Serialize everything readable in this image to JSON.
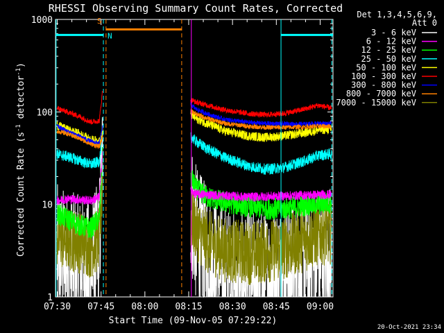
{
  "chart_data": {
    "type": "line",
    "title": "RHESSI Observing Summary Count Rates, Corrected",
    "xlabel": "Start Time (09-Nov-05 07:29:22)",
    "ylabel_main": "Corrected Count Rate (s",
    "ylabel_sup1": "-1",
    "ylabel_mid": " detector",
    "ylabel_sup2": "-1",
    "ylabel_end": ")",
    "yscale": "log",
    "ylim": [
      1,
      1000
    ],
    "xlim_minutes": [
      0,
      95
    ],
    "x_ticks": [
      {
        "t": 0.6,
        "label": "07:30"
      },
      {
        "t": 15.6,
        "label": "07:45"
      },
      {
        "t": 30.6,
        "label": "08:00"
      },
      {
        "t": 45.6,
        "label": "08:15"
      },
      {
        "t": 60.6,
        "label": "08:30"
      },
      {
        "t": 75.6,
        "label": "08:45"
      },
      {
        "t": 90.6,
        "label": "09:00"
      }
    ],
    "y_ticks": [
      {
        "v": 1,
        "label": "1"
      },
      {
        "v": 10,
        "label": "10"
      },
      {
        "v": 100,
        "label": "100"
      },
      {
        "v": 1000,
        "label": "1000"
      }
    ],
    "legend_header": [
      "Det 1,3,4,5,6,9,",
      "Att 0"
    ],
    "legend_placement": "right",
    "footer_date": "20-Oct-2021 23:34",
    "markers": {
      "S": {
        "label": "S",
        "color": "#ff8000"
      },
      "N": {
        "label": "N",
        "color": "#00ffff"
      }
    },
    "flag_bars": [
      {
        "name": "night",
        "color": "#00ffff",
        "value": 680,
        "segments": [
          [
            0,
            16.4
          ],
          [
            77.2,
            95
          ]
        ]
      },
      {
        "name": "saa",
        "color": "#ff8000",
        "value": 780,
        "segments": [
          [
            17.3,
            43.2
          ]
        ]
      }
    ],
    "vlines": [
      {
        "t": 17.3,
        "color": "#ff8000",
        "style": "dashed"
      },
      {
        "t": 43.2,
        "color": "#ff8000",
        "style": "dashed"
      },
      {
        "t": 16.4,
        "color": "#00ffff",
        "style": "dashed"
      },
      {
        "t": 0.2,
        "color": "#00ffff",
        "style": "solid"
      },
      {
        "t": 77.2,
        "color": "#00ffff",
        "style": "solid"
      },
      {
        "t": 94.6,
        "color": "#00ffff",
        "style": "dashed"
      },
      {
        "t": 46.5,
        "color": "#ff00ff",
        "style": "solid"
      }
    ],
    "gap_minutes": [
      16.4,
      46.2
    ],
    "series": [
      {
        "name": "3 - 6 keV",
        "color": "#ffffff",
        "before": [
          [
            0.5,
            3.0
          ],
          [
            4,
            2.6
          ],
          [
            8,
            2.3
          ],
          [
            12,
            2.0
          ],
          [
            15,
            3.4
          ],
          [
            16.2,
            40
          ]
        ],
        "after": [
          [
            46.3,
            10
          ],
          [
            48,
            5
          ],
          [
            52,
            2.8
          ],
          [
            56,
            2.0
          ],
          [
            60,
            1.6
          ],
          [
            66,
            1.5
          ],
          [
            72,
            1.6
          ],
          [
            78,
            1.9
          ],
          [
            84,
            2.2
          ],
          [
            90,
            2.8
          ],
          [
            94.5,
            3.0
          ]
        ],
        "noise": 0.75
      },
      {
        "name": "6 - 12 keV",
        "color": "#ff00ff",
        "before": [
          [
            0.5,
            11
          ],
          [
            4,
            11.5
          ],
          [
            8,
            11.3
          ],
          [
            12,
            11.0
          ],
          [
            15,
            12
          ],
          [
            16.2,
            40
          ]
        ],
        "after": [
          [
            46.3,
            14
          ],
          [
            48,
            13
          ],
          [
            56,
            12.5
          ],
          [
            66,
            12.0
          ],
          [
            76,
            12.3
          ],
          [
            86,
            12.6
          ],
          [
            94.5,
            12.8
          ]
        ],
        "noise": 0.05
      },
      {
        "name": "12 - 25 keV",
        "color": "#00ff00",
        "before": [
          [
            0.5,
            8
          ],
          [
            4,
            7
          ],
          [
            8,
            6
          ],
          [
            12,
            5.5
          ],
          [
            15,
            7
          ],
          [
            16.2,
            40
          ]
        ],
        "after": [
          [
            46.3,
            20
          ],
          [
            48,
            15
          ],
          [
            52,
            12
          ],
          [
            58,
            10.5
          ],
          [
            66,
            9.5
          ],
          [
            72,
            9.0
          ],
          [
            78,
            9.0
          ],
          [
            86,
            9.8
          ],
          [
            94.5,
            10.5
          ]
        ],
        "noise": 0.12
      },
      {
        "name": "25 - 50 keV",
        "color": "#00ffff",
        "before": [
          [
            0.5,
            35
          ],
          [
            4,
            33
          ],
          [
            8,
            30
          ],
          [
            12,
            27
          ],
          [
            15,
            29
          ],
          [
            16.2,
            60
          ]
        ],
        "after": [
          [
            46.3,
            55
          ],
          [
            48,
            48
          ],
          [
            52,
            40
          ],
          [
            58,
            32
          ],
          [
            66,
            26
          ],
          [
            72,
            24
          ],
          [
            78,
            25
          ],
          [
            86,
            30
          ],
          [
            90,
            34
          ],
          [
            94.5,
            35
          ]
        ],
        "noise": 0.06
      },
      {
        "name": "50 - 100 keV",
        "color": "#ffff00",
        "before": [
          [
            0.5,
            72
          ],
          [
            4,
            64
          ],
          [
            8,
            58
          ],
          [
            12,
            50
          ],
          [
            15,
            48
          ],
          [
            16.2,
            60
          ]
        ],
        "after": [
          [
            46.3,
            95
          ],
          [
            48,
            85
          ],
          [
            52,
            75
          ],
          [
            58,
            62
          ],
          [
            66,
            55
          ],
          [
            72,
            53
          ],
          [
            78,
            55
          ],
          [
            86,
            60
          ],
          [
            90,
            64
          ],
          [
            94.5,
            65
          ]
        ],
        "noise": 0.05
      },
      {
        "name": "100 - 300 keV",
        "color": "#ff0000",
        "before": [
          [
            0.5,
            110
          ],
          [
            4,
            100
          ],
          [
            8,
            90
          ],
          [
            12,
            78
          ],
          [
            15,
            80
          ],
          [
            16.2,
            180
          ]
        ],
        "after": [
          [
            46.3,
            135
          ],
          [
            48,
            128
          ],
          [
            52,
            118
          ],
          [
            58,
            105
          ],
          [
            66,
            96
          ],
          [
            72,
            93
          ],
          [
            78,
            96
          ],
          [
            84,
            105
          ],
          [
            90,
            118
          ],
          [
            94.5,
            110
          ]
        ],
        "noise": 0.03
      },
      {
        "name": "300 - 800 keV",
        "color": "#0000ff",
        "before": [
          [
            0.5,
            70
          ],
          [
            4,
            62
          ],
          [
            8,
            55
          ],
          [
            12,
            48
          ],
          [
            15,
            46
          ],
          [
            16.2,
            70
          ]
        ],
        "after": [
          [
            46.3,
            120
          ],
          [
            48,
            108
          ],
          [
            52,
            95
          ],
          [
            58,
            83
          ],
          [
            66,
            77
          ],
          [
            72,
            75
          ],
          [
            78,
            74
          ],
          [
            86,
            74
          ],
          [
            90,
            75
          ],
          [
            94.5,
            75
          ]
        ],
        "noise": 0.025
      },
      {
        "name": "800 - 7000 keV",
        "color": "#ff8000",
        "before": [
          [
            0.5,
            62
          ],
          [
            4,
            58
          ],
          [
            8,
            52
          ],
          [
            12,
            45
          ],
          [
            15,
            42
          ],
          [
            16.2,
            55
          ]
        ],
        "after": [
          [
            46.3,
            105
          ],
          [
            48,
            95
          ],
          [
            52,
            85
          ],
          [
            58,
            75
          ],
          [
            66,
            70
          ],
          [
            72,
            68
          ],
          [
            78,
            68
          ],
          [
            86,
            69
          ],
          [
            90,
            70
          ],
          [
            94.5,
            70
          ]
        ],
        "noise": 0.025
      },
      {
        "name": "7000 - 15000 keV",
        "color": "#808000",
        "before": [
          [
            0.5,
            4.5
          ],
          [
            4,
            4.2
          ],
          [
            8,
            4.0
          ],
          [
            12,
            3.5
          ],
          [
            15,
            4.2
          ],
          [
            16.2,
            20
          ]
        ],
        "after": [
          [
            46.3,
            7
          ],
          [
            48,
            5.5
          ],
          [
            52,
            4.0
          ],
          [
            58,
            3.2
          ],
          [
            66,
            3.0
          ],
          [
            72,
            3.1
          ],
          [
            78,
            3.4
          ],
          [
            86,
            4.2
          ],
          [
            90,
            4.8
          ],
          [
            94.5,
            5.0
          ]
        ],
        "noise": 0.35
      }
    ]
  }
}
